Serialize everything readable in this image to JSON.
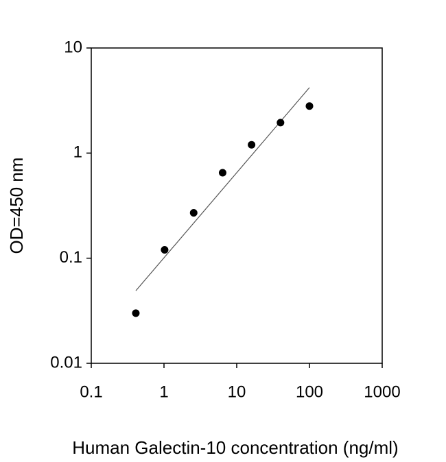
{
  "chart_data": {
    "type": "scatter",
    "x_label": "Human Galectin-10 concentration (ng/ml)",
    "y_label": "OD=450 nm",
    "x": [
      0.41,
      1.02,
      2.56,
      6.4,
      16,
      40,
      100
    ],
    "values": [
      0.03,
      0.12,
      0.27,
      0.65,
      1.2,
      1.95,
      2.8
    ],
    "color": "#000000",
    "fit_line": {
      "x": [
        0.41,
        100
      ],
      "y": [
        0.049,
        4.2
      ],
      "color": "#555555"
    },
    "xlim": [
      0.1,
      1000
    ],
    "ylim": [
      0.01,
      10
    ],
    "xticks": [
      0.1,
      1,
      10,
      100,
      1000
    ],
    "yticks": [
      0.01,
      0.1,
      1,
      10
    ],
    "xscale": "log",
    "yscale": "log",
    "grid": false
  }
}
